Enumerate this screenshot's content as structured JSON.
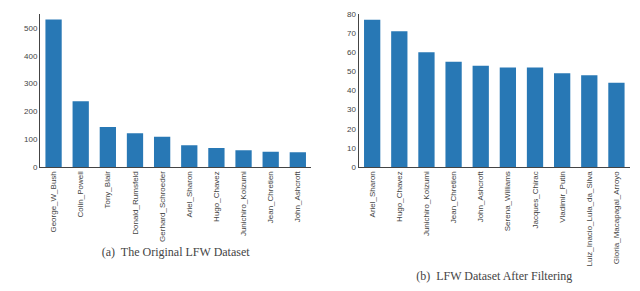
{
  "chart_data": [
    {
      "type": "bar",
      "title": "(a)  The Original LFW Dataset",
      "categories": [
        "George_W_Bush",
        "Colin_Powell",
        "Tony_Blair",
        "Donald_Rumsfeld",
        "Gerhard_Schroeder",
        "Ariel_Sharon",
        "Hugo_Chavez",
        "Junichiro_Koizumi",
        "Jean_Chretien",
        "John_Ashcroft"
      ],
      "values": [
        530,
        236,
        144,
        121,
        109,
        78,
        68,
        60,
        55,
        53
      ],
      "color": "#2878b5",
      "ylim": [
        0,
        550
      ],
      "yticks": [
        0,
        100,
        200,
        300,
        400,
        500
      ],
      "grid": false
    },
    {
      "type": "bar",
      "title": "(b)  LFW Dataset After Filtering",
      "categories": [
        "Ariel_Sharon",
        "Hugo_Chavez",
        "Junichiro_Koizumi",
        "Jean_Chretien",
        "John_Ashcroft",
        "Serena_Williams",
        "Jacques_Chirac",
        "Vladimir_Putin",
        "Luiz_Inacio_Lula_da_Silva",
        "Gloria_Macapagal_Arroyo"
      ],
      "values": [
        77,
        71,
        60,
        55,
        53,
        52,
        52,
        49,
        48,
        44
      ],
      "color": "#2878b5",
      "ylim": [
        0,
        80
      ],
      "yticks": [
        0,
        10,
        20,
        30,
        40,
        50,
        60,
        70,
        80
      ],
      "grid": false
    }
  ]
}
